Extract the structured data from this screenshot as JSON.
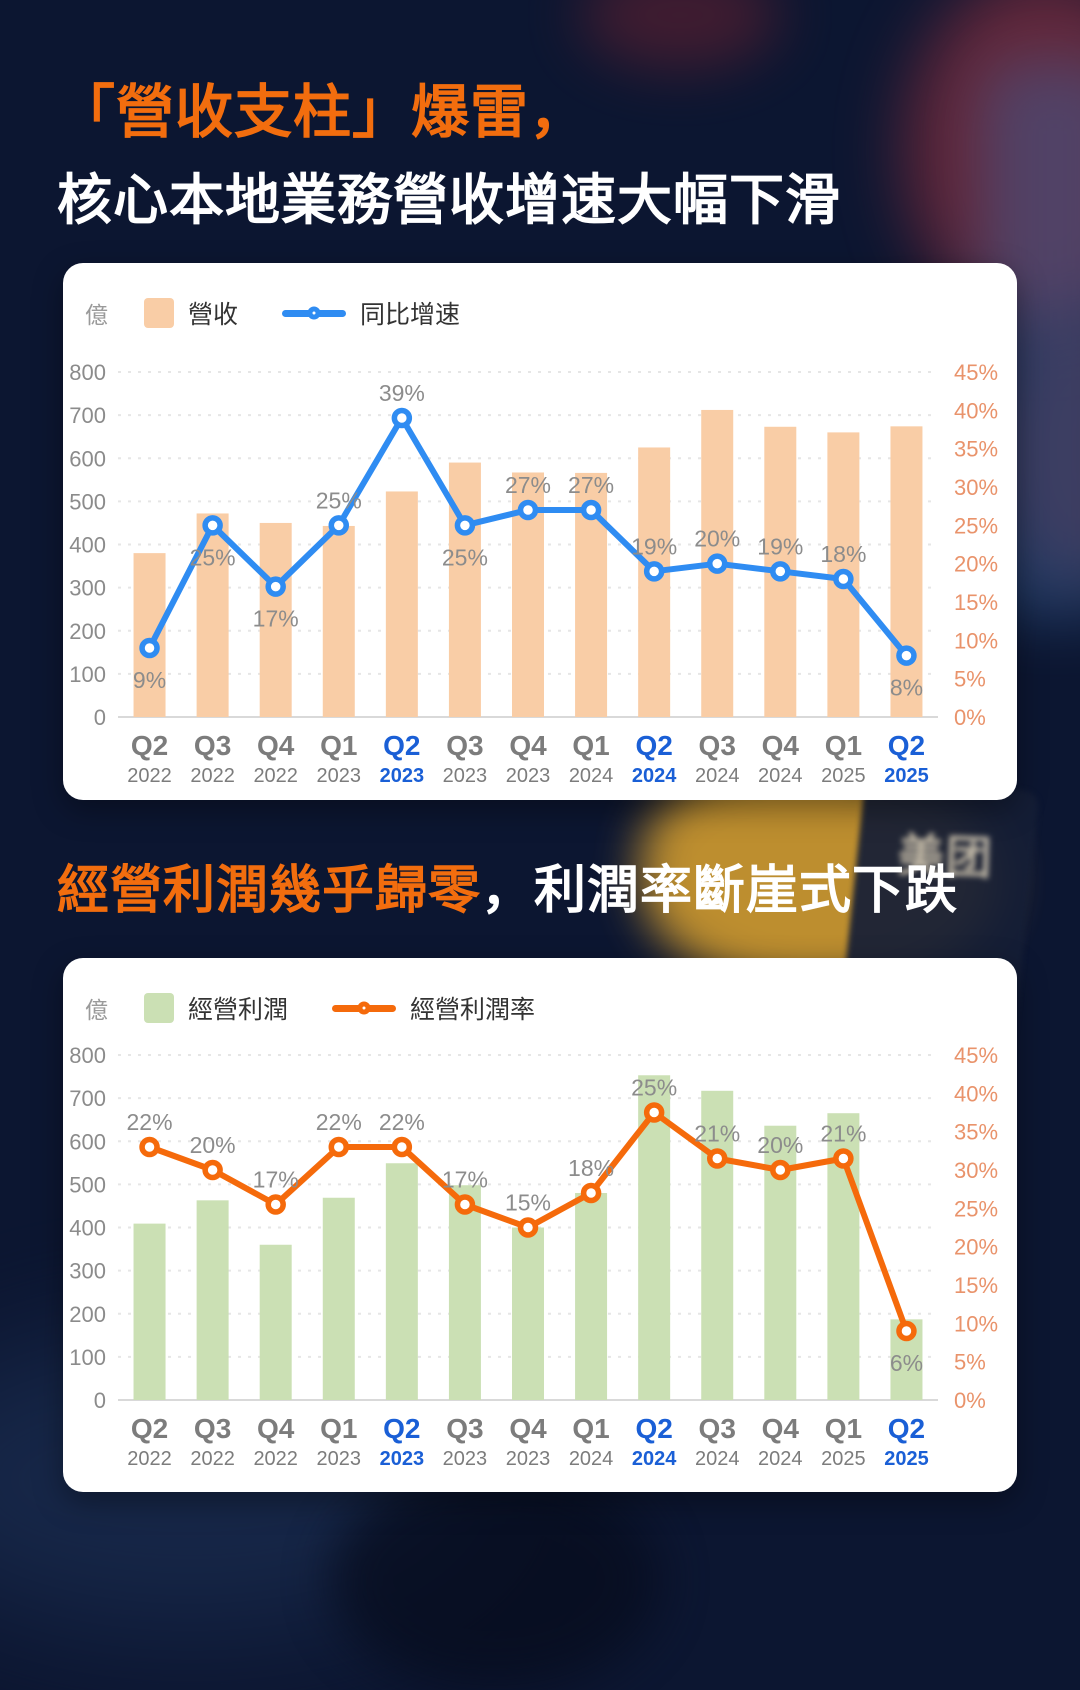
{
  "header": {
    "title_accent": "「營收支柱」爆雷，",
    "title_rest": "核心本地業務營收增速大幅下滑",
    "section2_accent": "經營利潤幾乎歸零",
    "section2_rest": "，利潤率斷崖式下跌"
  },
  "background": {
    "bag_logo": "美团"
  },
  "colors": {
    "accent_orange": "#F26D0E",
    "revenue_bar": "#F9CDA6",
    "growth_line": "#2F8CF2",
    "profit_bar": "#CBE0B4",
    "margin_line": "#F56A0B",
    "axis_left_text": "#8B8B8B",
    "axis_right_text": "#E9936B",
    "quarter_highlight": "#1A5FD6"
  },
  "chart_data": [
    {
      "type": "bar+line",
      "unit_label": "億",
      "legend": [
        {
          "label": "營收"
        },
        {
          "label": "同比增速"
        }
      ],
      "bar_color": "#F9CDA6",
      "line_color": "#2F8CF2",
      "categories": [
        {
          "quarter": "Q2",
          "year": "2022",
          "highlight": false
        },
        {
          "quarter": "Q3",
          "year": "2022",
          "highlight": false
        },
        {
          "quarter": "Q4",
          "year": "2022",
          "highlight": false
        },
        {
          "quarter": "Q1",
          "year": "2023",
          "highlight": false
        },
        {
          "quarter": "Q2",
          "year": "2023",
          "highlight": true
        },
        {
          "quarter": "Q3",
          "year": "2023",
          "highlight": false
        },
        {
          "quarter": "Q4",
          "year": "2023",
          "highlight": false
        },
        {
          "quarter": "Q1",
          "year": "2024",
          "highlight": false
        },
        {
          "quarter": "Q2",
          "year": "2024",
          "highlight": true
        },
        {
          "quarter": "Q3",
          "year": "2024",
          "highlight": false
        },
        {
          "quarter": "Q4",
          "year": "2024",
          "highlight": false
        },
        {
          "quarter": "Q1",
          "year": "2025",
          "highlight": false
        },
        {
          "quarter": "Q2",
          "year": "2025",
          "highlight": true
        }
      ],
      "bar_values": [
        380,
        472,
        450,
        443,
        523,
        590,
        567,
        566,
        625,
        712,
        673,
        660,
        674
      ],
      "line_values_pct": [
        9,
        25,
        17,
        25,
        39,
        25,
        27,
        27,
        19,
        20,
        19,
        18,
        8
      ],
      "label_positions": [
        "below",
        "below",
        "below",
        "above",
        "above",
        "below",
        "above",
        "above",
        "above",
        "above",
        "above",
        "above",
        "below"
      ],
      "left_axis": {
        "min": 0,
        "max": 800,
        "step": 100
      },
      "right_axis": {
        "min": 0,
        "max": 45,
        "step": 5,
        "suffix": "%"
      },
      "line_render_max": 45,
      "grid": "horizontal-dashed",
      "legend_position": "top-left"
    },
    {
      "type": "bar+line",
      "unit_label": "億",
      "legend": [
        {
          "label": "經營利潤"
        },
        {
          "label": "經營利潤率"
        }
      ],
      "bar_color": "#CBE0B4",
      "line_color": "#F56A0B",
      "categories": [
        {
          "quarter": "Q2",
          "year": "2022",
          "highlight": false
        },
        {
          "quarter": "Q3",
          "year": "2022",
          "highlight": false
        },
        {
          "quarter": "Q4",
          "year": "2022",
          "highlight": false
        },
        {
          "quarter": "Q1",
          "year": "2023",
          "highlight": false
        },
        {
          "quarter": "Q2",
          "year": "2023",
          "highlight": true
        },
        {
          "quarter": "Q3",
          "year": "2023",
          "highlight": false
        },
        {
          "quarter": "Q4",
          "year": "2023",
          "highlight": false
        },
        {
          "quarter": "Q1",
          "year": "2024",
          "highlight": false
        },
        {
          "quarter": "Q2",
          "year": "2024",
          "highlight": true
        },
        {
          "quarter": "Q3",
          "year": "2024",
          "highlight": false
        },
        {
          "quarter": "Q4",
          "year": "2024",
          "highlight": false
        },
        {
          "quarter": "Q1",
          "year": "2025",
          "highlight": false
        },
        {
          "quarter": "Q2",
          "year": "2025",
          "highlight": true
        }
      ],
      "bar_values": [
        409,
        463,
        360,
        469,
        549,
        498,
        400,
        480,
        753,
        717,
        636,
        665,
        187
      ],
      "line_values_pct": [
        22,
        20,
        17,
        22,
        22,
        17,
        15,
        18,
        25,
        21,
        20,
        21,
        6
      ],
      "label_positions": [
        "above",
        "above",
        "above",
        "above",
        "above",
        "above",
        "above",
        "above",
        "above",
        "above",
        "above",
        "above",
        "below"
      ],
      "left_axis": {
        "min": 0,
        "max": 800,
        "step": 100
      },
      "right_axis": {
        "min": 0,
        "max": 45,
        "step": 5,
        "suffix": "%"
      },
      "line_render_max": 30,
      "grid": "horizontal-dashed",
      "legend_position": "top-left"
    }
  ]
}
